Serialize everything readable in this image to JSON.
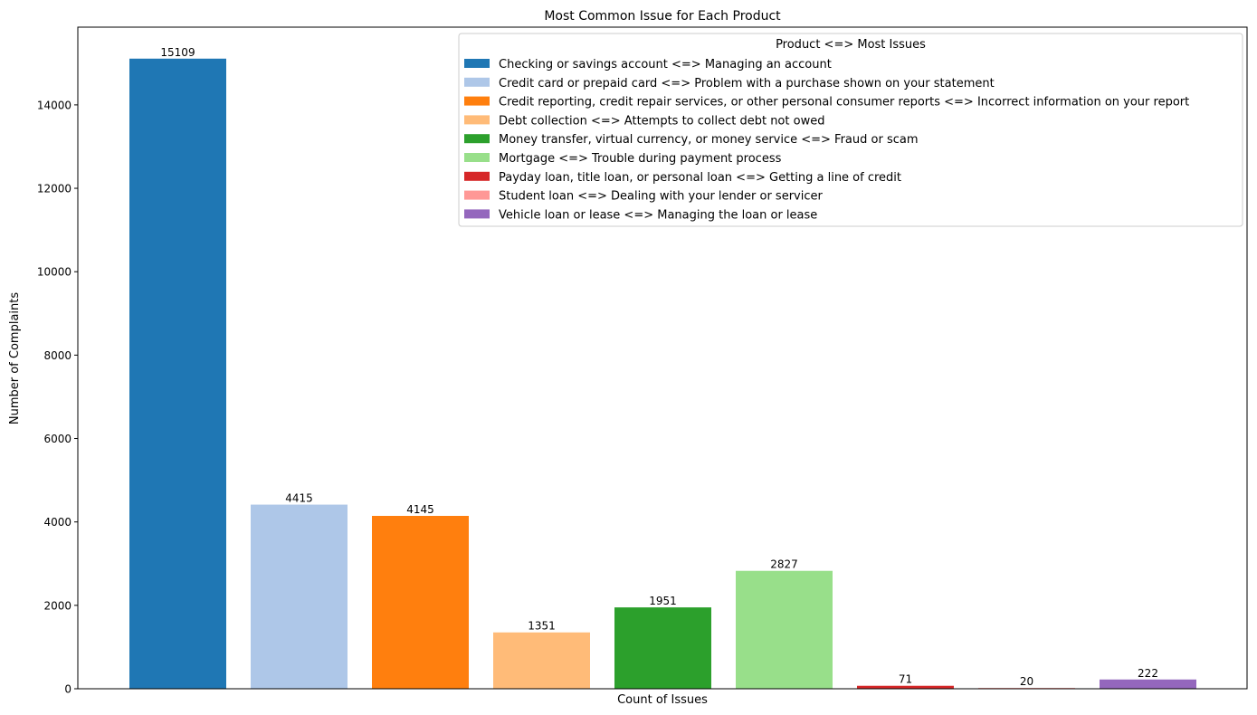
{
  "chart_data": {
    "type": "bar",
    "title": "Most Common Issue for Each Product",
    "xlabel": "Count of Issues",
    "ylabel": "Number of Complaints",
    "ylim": [
      0,
      15864
    ],
    "yticks": [
      0,
      2000,
      4000,
      6000,
      8000,
      10000,
      12000,
      14000
    ],
    "grid": false,
    "legend": {
      "title": "Product <=> Most Issues",
      "placement": "top-right"
    },
    "series": [
      {
        "name": "Checking or savings account <=> Managing an account",
        "value": 15109,
        "color": "#1f77b4"
      },
      {
        "name": "Credit card or prepaid card <=> Problem with a purchase shown on your statement",
        "value": 4415,
        "color": "#aec7e8"
      },
      {
        "name": "Credit reporting, credit repair services, or other personal consumer reports <=> Incorrect information on your report",
        "value": 4145,
        "color": "#ff7f0e"
      },
      {
        "name": "Debt collection <=> Attempts to collect debt not owed",
        "value": 1351,
        "color": "#ffbb78"
      },
      {
        "name": "Money transfer, virtual currency, or money service <=> Fraud or scam",
        "value": 1951,
        "color": "#2ca02c"
      },
      {
        "name": "Mortgage <=> Trouble during payment process",
        "value": 2827,
        "color": "#98df8a"
      },
      {
        "name": "Payday loan, title loan, or personal loan <=> Getting a line of credit",
        "value": 71,
        "color": "#d62728"
      },
      {
        "name": "Student loan <=> Dealing with your lender or servicer",
        "value": 20,
        "color": "#ff9896"
      },
      {
        "name": "Vehicle loan or lease <=> Managing the loan or lease",
        "value": 222,
        "color": "#9467bd"
      }
    ]
  }
}
